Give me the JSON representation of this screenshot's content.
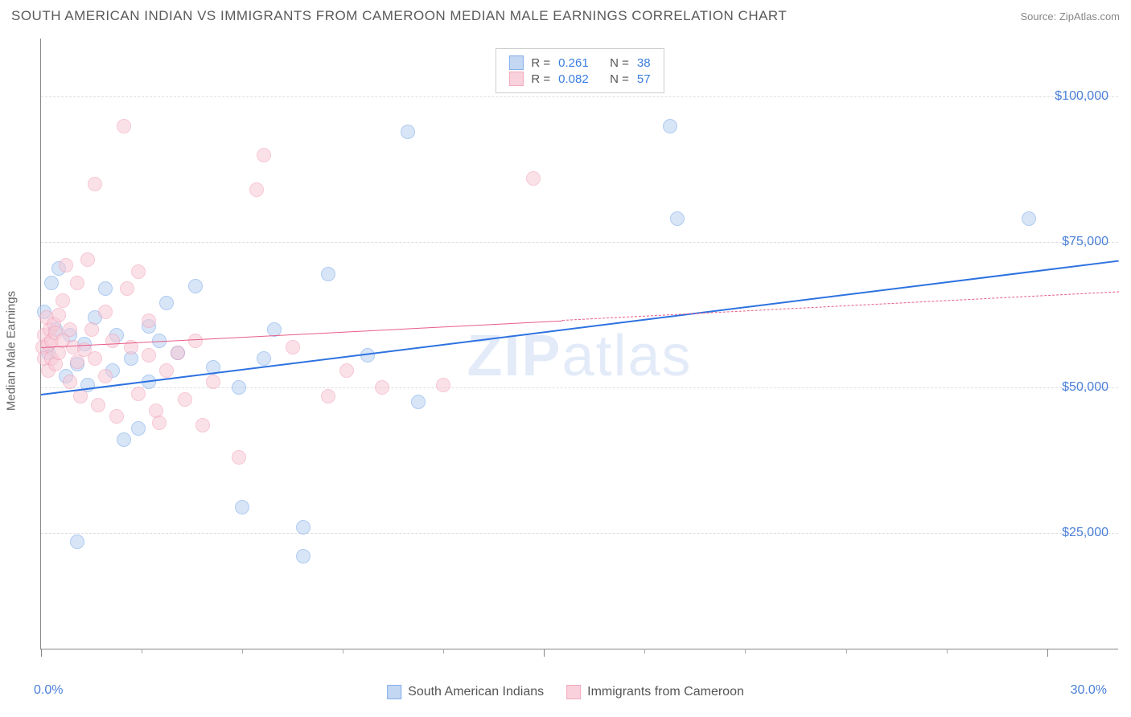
{
  "title": "SOUTH AMERICAN INDIAN VS IMMIGRANTS FROM CAMEROON MEDIAN MALE EARNINGS CORRELATION CHART",
  "source": "Source: ZipAtlas.com",
  "watermark_bold": "ZIP",
  "watermark_light": "atlas",
  "yaxis": {
    "label": "Median Male Earnings",
    "ticks": [
      {
        "value": 25000,
        "label": "$25,000"
      },
      {
        "value": 50000,
        "label": "$50,000"
      },
      {
        "value": 75000,
        "label": "$75,000"
      },
      {
        "value": 100000,
        "label": "$100,000"
      }
    ],
    "ymin": 5000,
    "ymax": 110000
  },
  "xaxis": {
    "xmin": 0.0,
    "xmax": 30.0,
    "left_label": "0.0%",
    "right_label": "30.0%",
    "major_ticks": [
      0,
      14,
      28
    ],
    "minor_ticks": [
      2.8,
      5.6,
      8.4,
      11.2,
      16.8,
      19.6,
      22.4,
      25.2
    ]
  },
  "series": [
    {
      "name": "South American Indians",
      "stroke": "#6ea2e8",
      "fill": "#b9d1f2",
      "fill_opacity": 0.55,
      "marker_radius": 9,
      "r_value": "0.261",
      "n_value": "38",
      "trend": {
        "x1": 0.0,
        "y1": 49000,
        "x2": 30.0,
        "y2": 72000,
        "width": 2.5,
        "dashed": false,
        "color": "#2d72e0"
      },
      "points": [
        [
          0.1,
          63000
        ],
        [
          0.2,
          56000
        ],
        [
          0.3,
          68000
        ],
        [
          0.4,
          60000
        ],
        [
          0.5,
          70500
        ],
        [
          0.7,
          52000
        ],
        [
          0.8,
          59000
        ],
        [
          1.0,
          54000
        ],
        [
          1.0,
          23500
        ],
        [
          1.2,
          57500
        ],
        [
          1.3,
          50500
        ],
        [
          1.5,
          62000
        ],
        [
          1.8,
          67000
        ],
        [
          2.0,
          53000
        ],
        [
          2.1,
          59000
        ],
        [
          2.3,
          41000
        ],
        [
          2.5,
          55000
        ],
        [
          2.7,
          43000
        ],
        [
          3.0,
          51000
        ],
        [
          3.0,
          60500
        ],
        [
          3.3,
          58000
        ],
        [
          3.5,
          64500
        ],
        [
          3.8,
          56000
        ],
        [
          4.3,
          67500
        ],
        [
          4.8,
          53500
        ],
        [
          5.5,
          50000
        ],
        [
          5.6,
          29500
        ],
        [
          6.2,
          55000
        ],
        [
          6.5,
          60000
        ],
        [
          7.3,
          21000
        ],
        [
          7.3,
          26000
        ],
        [
          8.0,
          69500
        ],
        [
          9.1,
          55500
        ],
        [
          10.2,
          94000
        ],
        [
          10.5,
          47500
        ],
        [
          17.5,
          95000
        ],
        [
          17.7,
          79000
        ],
        [
          27.5,
          79000
        ]
      ]
    },
    {
      "name": "Immigrants from Cameroon",
      "stroke": "#f29bb3",
      "fill": "#f7c9d6",
      "fill_opacity": 0.55,
      "marker_radius": 9,
      "r_value": "0.082",
      "n_value": "57",
      "trend": {
        "x1": 0.0,
        "y1": 57000,
        "x2": 30.0,
        "y2": 66500,
        "width": 1.8,
        "dashed": false,
        "color": "#e85c87",
        "split_x": 14.5,
        "dashed_after": true
      },
      "points": [
        [
          0.05,
          57000
        ],
        [
          0.1,
          55000
        ],
        [
          0.1,
          59000
        ],
        [
          0.15,
          62000
        ],
        [
          0.2,
          53000
        ],
        [
          0.2,
          57500
        ],
        [
          0.25,
          60000
        ],
        [
          0.3,
          55000
        ],
        [
          0.3,
          58000
        ],
        [
          0.35,
          61000
        ],
        [
          0.4,
          54000
        ],
        [
          0.4,
          59500
        ],
        [
          0.5,
          56000
        ],
        [
          0.5,
          62500
        ],
        [
          0.6,
          58000
        ],
        [
          0.6,
          65000
        ],
        [
          0.7,
          71000
        ],
        [
          0.8,
          51000
        ],
        [
          0.8,
          60000
        ],
        [
          0.9,
          57000
        ],
        [
          1.0,
          54500
        ],
        [
          1.0,
          68000
        ],
        [
          1.1,
          48500
        ],
        [
          1.2,
          56500
        ],
        [
          1.3,
          72000
        ],
        [
          1.4,
          60000
        ],
        [
          1.5,
          55000
        ],
        [
          1.5,
          85000
        ],
        [
          1.6,
          47000
        ],
        [
          1.8,
          52000
        ],
        [
          1.8,
          63000
        ],
        [
          2.0,
          58000
        ],
        [
          2.1,
          45000
        ],
        [
          2.3,
          95000
        ],
        [
          2.4,
          67000
        ],
        [
          2.5,
          57000
        ],
        [
          2.7,
          49000
        ],
        [
          2.7,
          70000
        ],
        [
          3.0,
          55500
        ],
        [
          3.0,
          61500
        ],
        [
          3.2,
          46000
        ],
        [
          3.3,
          44000
        ],
        [
          3.5,
          53000
        ],
        [
          3.8,
          56000
        ],
        [
          4.0,
          48000
        ],
        [
          4.3,
          58000
        ],
        [
          4.5,
          43500
        ],
        [
          4.8,
          51000
        ],
        [
          5.5,
          38000
        ],
        [
          6.0,
          84000
        ],
        [
          6.2,
          90000
        ],
        [
          7.0,
          57000
        ],
        [
          8.0,
          48500
        ],
        [
          8.5,
          53000
        ],
        [
          9.5,
          50000
        ],
        [
          11.2,
          50500
        ],
        [
          13.7,
          86000
        ]
      ]
    }
  ],
  "legend_top_labels": {
    "r": "R  =",
    "n": "N  ="
  },
  "colors": {
    "blue_text": "#4a7fd8",
    "grid": "#dddddd",
    "axis": "#888888"
  }
}
